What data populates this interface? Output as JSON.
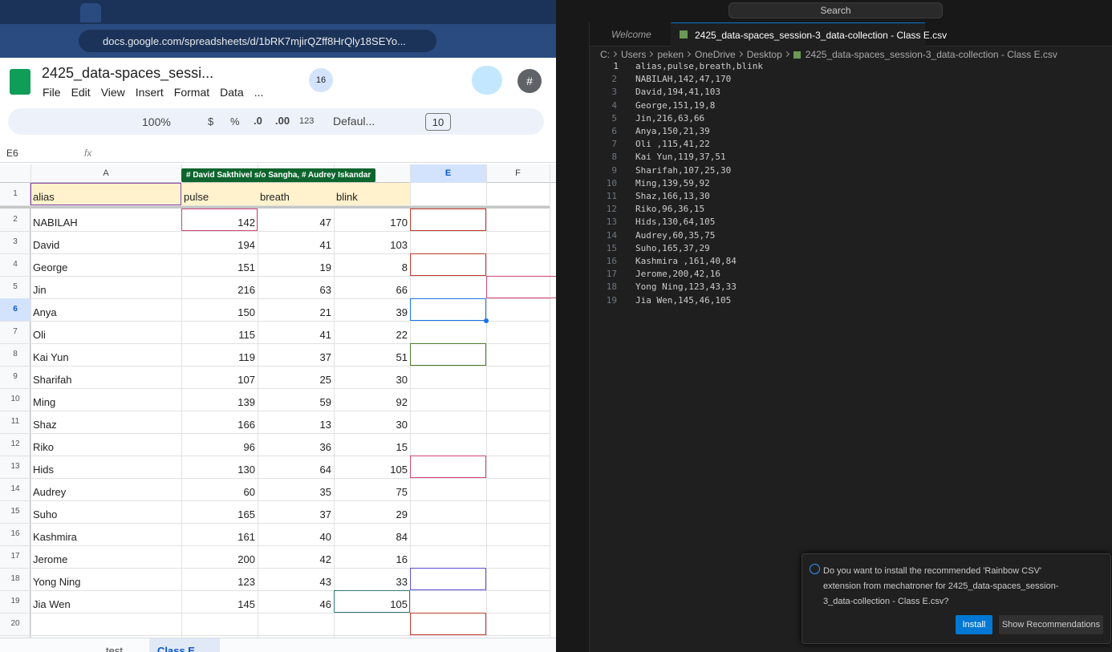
{
  "browser": {
    "url": "docs.google.com/spreadsheets/d/1bRK7mjirQZff8HrQly18SEYo..."
  },
  "sheets": {
    "title": "2425_data-spaces_sessi...",
    "menu": [
      "File",
      "Edit",
      "View",
      "Insert",
      "Format",
      "Data",
      "..."
    ],
    "presence_count": "16",
    "avatar": "#",
    "toolbar": {
      "zoom": "100%",
      "currency": "$",
      "percent": "%",
      "dec_decrease": ".0",
      "dec_increase": ".00",
      "number_format": "123",
      "font": "Defaul...",
      "font_size": "10"
    },
    "name_box": "E6",
    "formula_label": "fx",
    "collaborators_tag": "# David Sakthivel s/o Sangha, # Audrey Iskandar",
    "column_headers": [
      "A",
      "E",
      "F"
    ],
    "rows": [
      {
        "number": 1,
        "cells": [
          "alias",
          "pulse",
          "breath",
          "blink"
        ]
      },
      {
        "number": 2,
        "cells": [
          "NABILAH",
          142,
          47,
          170
        ]
      },
      {
        "number": 3,
        "cells": [
          "David",
          194,
          41,
          103
        ]
      },
      {
        "number": 4,
        "cells": [
          "George",
          151,
          19,
          8
        ]
      },
      {
        "number": 5,
        "cells": [
          "Jin",
          216,
          63,
          66
        ]
      },
      {
        "number": 6,
        "cells": [
          "Anya",
          150,
          21,
          39
        ]
      },
      {
        "number": 7,
        "cells": [
          "Oli",
          115,
          41,
          22
        ]
      },
      {
        "number": 8,
        "cells": [
          "Kai Yun",
          119,
          37,
          51
        ]
      },
      {
        "number": 9,
        "cells": [
          "Sharifah",
          107,
          25,
          30
        ]
      },
      {
        "number": 10,
        "cells": [
          "Ming",
          139,
          59,
          92
        ]
      },
      {
        "number": 11,
        "cells": [
          "Shaz",
          166,
          13,
          30
        ]
      },
      {
        "number": 12,
        "cells": [
          "Riko",
          96,
          36,
          15
        ]
      },
      {
        "number": 13,
        "cells": [
          "Hids",
          130,
          64,
          105
        ]
      },
      {
        "number": 14,
        "cells": [
          "Audrey",
          60,
          35,
          75
        ]
      },
      {
        "number": 15,
        "cells": [
          "Suho",
          165,
          37,
          29
        ]
      },
      {
        "number": 16,
        "cells": [
          "Kashmira",
          161,
          40,
          84
        ]
      },
      {
        "number": 17,
        "cells": [
          "Jerome",
          200,
          42,
          16
        ]
      },
      {
        "number": 18,
        "cells": [
          "Yong Ning",
          123,
          43,
          33
        ]
      },
      {
        "number": 19,
        "cells": [
          "Jia Wen",
          145,
          46,
          105
        ]
      },
      {
        "number": 20,
        "cells": []
      }
    ],
    "sheet_tabs": [
      "test",
      "Class E"
    ]
  },
  "vscode": {
    "search": "Search",
    "tabs": [
      "Welcome",
      "2425_data-spaces_session-3_data-collection - Class E.csv"
    ],
    "breadcrumb": [
      "C:",
      "Users",
      "peken",
      "OneDrive",
      "Desktop",
      "2425_data-spaces_session-3_data-collection - Class E.csv"
    ],
    "lines": [
      {
        "number": 1,
        "text": "alias,pulse,breath,blink"
      },
      {
        "number": 2,
        "text": "NABILAH,142,47,170"
      },
      {
        "number": 3,
        "text": "David,194,41,103"
      },
      {
        "number": 4,
        "text": "George,151,19,8"
      },
      {
        "number": 5,
        "text": "Jin,216,63,66"
      },
      {
        "number": 6,
        "text": "Anya,150,21,39"
      },
      {
        "number": 7,
        "text": "Oli ,115,41,22"
      },
      {
        "number": 8,
        "text": "Kai Yun,119,37,51"
      },
      {
        "number": 9,
        "text": "Sharifah,107,25,30"
      },
      {
        "number": 10,
        "text": "Ming,139,59,92"
      },
      {
        "number": 11,
        "text": "Shaz,166,13,30"
      },
      {
        "number": 12,
        "text": "Riko,96,36,15"
      },
      {
        "number": 13,
        "text": "Hids,130,64,105"
      },
      {
        "number": 14,
        "text": "Audrey,60,35,75"
      },
      {
        "number": 15,
        "text": "Suho,165,37,29"
      },
      {
        "number": 16,
        "text": "Kashmira ,161,40,84"
      },
      {
        "number": 17,
        "text": "Jerome,200,42,16"
      },
      {
        "number": 18,
        "text": "Yong Ning,123,43,33"
      },
      {
        "number": 19,
        "text": "Jia Wen,145,46,105"
      }
    ],
    "notification": {
      "message": "Do you want to install the recommended 'Rainbow CSV' extension from mechatroner for 2425_data-spaces_session-3_data-collection - Class E.csv?",
      "buttons": [
        "Install",
        "Show Recommendations"
      ]
    }
  }
}
